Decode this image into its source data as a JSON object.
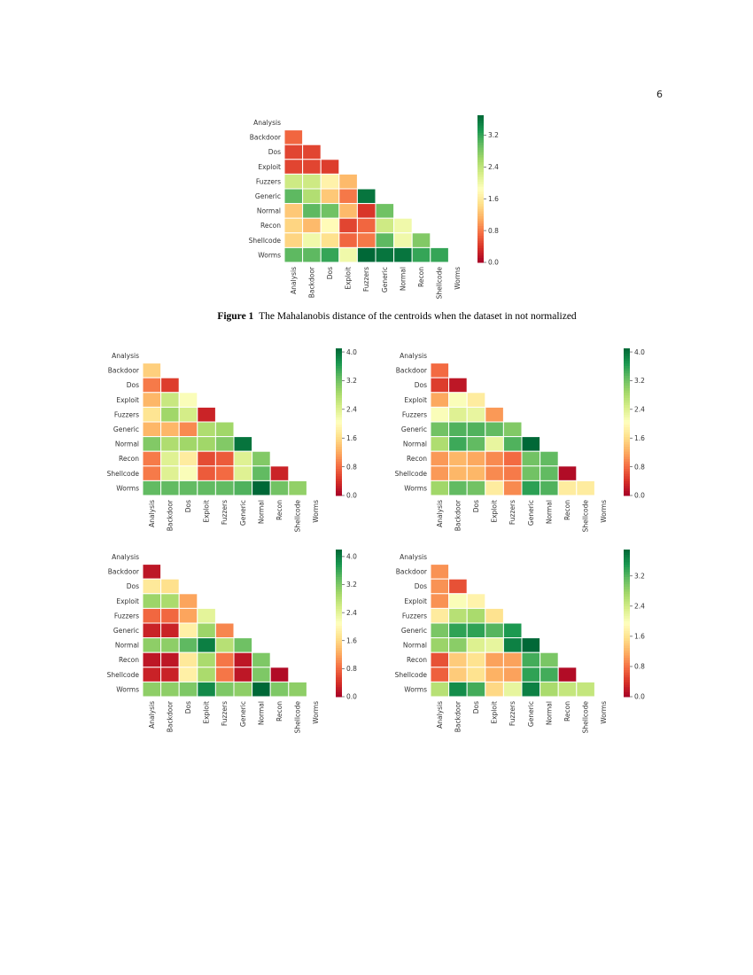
{
  "page_number": "6",
  "figure1_caption": {
    "label": "Figure 1",
    "text": "The Mahalanobis distance of the centroids when the dataset in not normalized"
  },
  "chart_data": [
    {
      "type": "heatmap",
      "labels": [
        "Analysis",
        "Backdoor",
        "Dos",
        "Exploit",
        "Fuzzers",
        "Generic",
        "Normal",
        "Recon",
        "Shellcode",
        "Worms"
      ],
      "colormap": "RdYlGn",
      "vmin": 0,
      "vmax": 3.7,
      "colorbar_ticks": [
        "0.0",
        "0.8",
        "1.6",
        "2.4",
        "3.2"
      ],
      "lower_triangle": [
        [],
        [
          0.7
        ],
        [
          0.5,
          0.5
        ],
        [
          0.5,
          0.5,
          0.45
        ],
        [
          2.3,
          2.3,
          1.7,
          1.2
        ],
        [
          3.0,
          2.5,
          1.3,
          0.8,
          3.6
        ],
        [
          1.3,
          3.0,
          2.9,
          1.2,
          0.4,
          2.9
        ],
        [
          1.4,
          1.2,
          1.8,
          0.5,
          0.7,
          2.3,
          2.0
        ],
        [
          1.4,
          2.0,
          1.5,
          0.7,
          0.8,
          3.0,
          2.0,
          2.8
        ],
        [
          3.0,
          3.0,
          3.2,
          2.0,
          3.7,
          3.6,
          3.6,
          3.2,
          3.2
        ]
      ]
    },
    {
      "type": "heatmap",
      "labels": [
        "Analysis",
        "Backdoor",
        "Dos",
        "Exploit",
        "Fuzzers",
        "Generic",
        "Normal",
        "Recon",
        "Shellcode",
        "Worms"
      ],
      "colormap": "RdYlGn",
      "vmin": 0,
      "vmax": 4.1,
      "colorbar_ticks": [
        "0.0",
        "0.8",
        "1.6",
        "2.4",
        "3.2",
        "4.0"
      ],
      "lower_triangle": [
        [],
        [
          1.5
        ],
        [
          0.9,
          0.5
        ],
        [
          1.3,
          2.6,
          2.1
        ],
        [
          1.7,
          2.9,
          2.5,
          0.3
        ],
        [
          1.3,
          1.3,
          1.0,
          2.8,
          2.9
        ],
        [
          3.1,
          2.8,
          2.9,
          2.9,
          3.1,
          4.0
        ],
        [
          0.9,
          2.4,
          1.8,
          0.6,
          0.7,
          2.4,
          3.1
        ],
        [
          0.9,
          2.4,
          2.1,
          0.7,
          0.8,
          2.4,
          3.3,
          0.3
        ],
        [
          3.3,
          3.3,
          3.3,
          3.3,
          3.3,
          3.4,
          4.1,
          3.2,
          3.0
        ]
      ]
    },
    {
      "type": "heatmap",
      "labels": [
        "Analysis",
        "Backdoor",
        "Dos",
        "Exploit",
        "Fuzzers",
        "Generic",
        "Normal",
        "Recon",
        "Shellcode",
        "Worms"
      ],
      "colormap": "RdYlGn",
      "vmin": 0,
      "vmax": 4.1,
      "colorbar_ticks": [
        "0.0",
        "0.8",
        "1.6",
        "2.4",
        "3.2",
        "4.0"
      ],
      "lower_triangle": [
        [],
        [
          0.8
        ],
        [
          0.5,
          0.2
        ],
        [
          1.2,
          2.1,
          1.8
        ],
        [
          2.1,
          2.4,
          2.3,
          1.1
        ],
        [
          3.2,
          3.4,
          3.4,
          3.3,
          3.1
        ],
        [
          2.8,
          3.5,
          3.3,
          2.3,
          3.4,
          4.1
        ],
        [
          1.1,
          1.3,
          1.2,
          1.0,
          0.8,
          3.2,
          3.3
        ],
        [
          1.1,
          1.3,
          1.3,
          1.0,
          0.9,
          3.2,
          3.3,
          0.1
        ],
        [
          2.9,
          3.3,
          3.2,
          1.8,
          1.0,
          3.6,
          3.4,
          1.8,
          1.8
        ]
      ]
    },
    {
      "type": "heatmap",
      "labels": [
        "Analysis",
        "Backdoor",
        "Dos",
        "Exploit",
        "Fuzzers",
        "Generic",
        "Normal",
        "Recon",
        "Shellcode",
        "Worms"
      ],
      "colormap": "RdYlGn",
      "vmin": 0,
      "vmax": 4.2,
      "colorbar_ticks": [
        "0.0",
        "0.8",
        "1.6",
        "2.4",
        "3.2",
        "4.0"
      ],
      "lower_triangle": [
        [],
        [
          0.2
        ],
        [
          1.8,
          1.7
        ],
        [
          3.0,
          2.9,
          1.2
        ],
        [
          0.8,
          0.8,
          1.2,
          2.4
        ],
        [
          0.3,
          0.3,
          1.9,
          3.0,
          1.0
        ],
        [
          3.1,
          3.1,
          3.4,
          4.0,
          2.8,
          3.3
        ],
        [
          0.2,
          0.2,
          1.8,
          2.9,
          0.9,
          0.2,
          3.2
        ],
        [
          0.3,
          0.3,
          1.9,
          2.9,
          0.9,
          0.2,
          3.2,
          0.1
        ],
        [
          3.1,
          3.1,
          3.2,
          3.9,
          3.2,
          3.1,
          4.2,
          3.2,
          3.1
        ]
      ]
    },
    {
      "type": "heatmap",
      "labels": [
        "Analysis",
        "Backdoor",
        "Dos",
        "Exploit",
        "Fuzzers",
        "Generic",
        "Normal",
        "Recon",
        "Shellcode",
        "Worms"
      ],
      "colormap": "RdYlGn",
      "vmin": 0,
      "vmax": 3.9,
      "colorbar_ticks": [
        "0.0",
        "0.8",
        "1.6",
        "2.4",
        "3.2"
      ],
      "lower_triangle": [
        [],
        [
          1.0
        ],
        [
          1.0,
          0.6
        ],
        [
          1.0,
          2.0,
          1.8
        ],
        [
          1.7,
          2.6,
          2.7,
          1.6
        ],
        [
          3.0,
          3.4,
          3.4,
          3.2,
          3.5
        ],
        [
          2.8,
          2.9,
          2.3,
          2.2,
          3.7,
          3.9
        ],
        [
          0.6,
          1.4,
          1.6,
          1.1,
          1.1,
          3.3,
          3.0
        ],
        [
          0.7,
          1.4,
          1.6,
          1.2,
          1.1,
          3.4,
          3.3,
          0.1
        ],
        [
          2.6,
          3.6,
          3.3,
          1.5,
          2.2,
          3.7,
          2.7,
          2.5,
          2.5
        ]
      ]
    }
  ]
}
